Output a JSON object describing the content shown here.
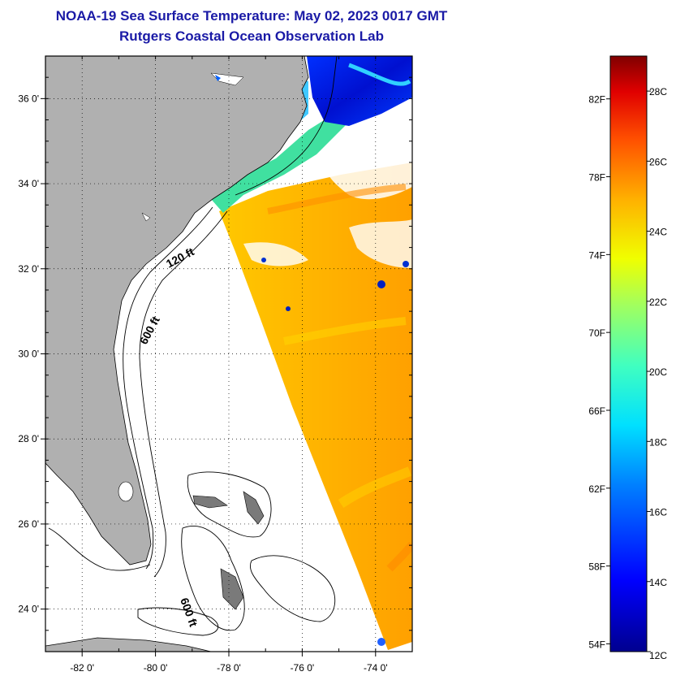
{
  "title": "NOAA-19 Sea Surface Temperature:  May 02, 2023 0017 GMT",
  "subtitle": "Rutgers Coastal Ocean Observation Lab",
  "map": {
    "lon_range": [
      -83,
      -73
    ],
    "lat_range": [
      23,
      37
    ],
    "lon_ticks": [
      {
        "lon": -82,
        "label": "-82 0'"
      },
      {
        "lon": -80,
        "label": "-80 0'"
      },
      {
        "lon": -78,
        "label": "-78 0'"
      },
      {
        "lon": -76,
        "label": "-76 0'"
      },
      {
        "lon": -74,
        "label": "-74 0'"
      }
    ],
    "lat_ticks": [
      {
        "lat": 36,
        "label": "36 0'"
      },
      {
        "lat": 34,
        "label": "34 0'"
      },
      {
        "lat": 32,
        "label": "32 0'"
      },
      {
        "lat": 30,
        "label": "30 0'"
      },
      {
        "lat": 28,
        "label": "28 0'"
      },
      {
        "lat": 26,
        "label": "26 0'"
      },
      {
        "lat": 24,
        "label": "24 0'"
      }
    ],
    "grid": "dotted",
    "contour_labels": [
      {
        "text": "120 ft"
      },
      {
        "text": "600 ft"
      },
      {
        "text": "600 ft"
      }
    ],
    "land_color": "#b0b0b0"
  },
  "colorbar": {
    "min_c": 12,
    "max_c": 29,
    "celsius_labels": [
      {
        "value": 28,
        "label": "28C"
      },
      {
        "value": 26,
        "label": "26C"
      },
      {
        "value": 24,
        "label": "24C"
      },
      {
        "value": 22,
        "label": "22C"
      },
      {
        "value": 20,
        "label": "20C"
      },
      {
        "value": 18,
        "label": "18C"
      },
      {
        "value": 16,
        "label": "16C"
      },
      {
        "value": 14,
        "label": "14C"
      },
      {
        "value": 12,
        "label": "12C"
      }
    ],
    "fahrenheit_labels": [
      {
        "value": 82,
        "label": "82F"
      },
      {
        "value": 78,
        "label": "78F"
      },
      {
        "value": 74,
        "label": "74F"
      },
      {
        "value": 70,
        "label": "70F"
      },
      {
        "value": 66,
        "label": "66F"
      },
      {
        "value": 62,
        "label": "62F"
      },
      {
        "value": 58,
        "label": "58F"
      },
      {
        "value": 54,
        "label": "54F"
      }
    ]
  }
}
